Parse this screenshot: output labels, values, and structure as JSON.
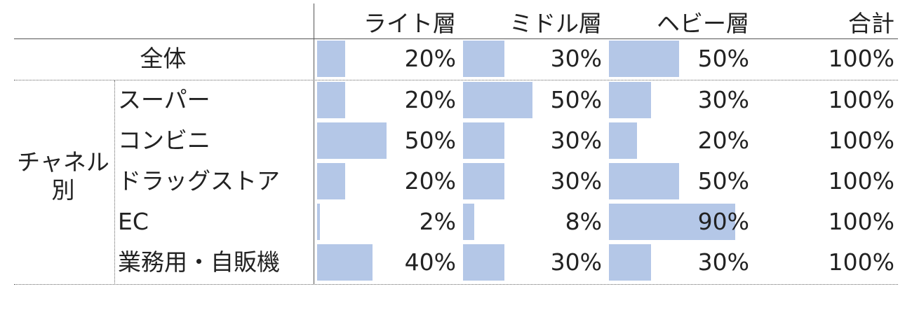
{
  "chart_data": {
    "type": "table",
    "columns": [
      "ライト層",
      "ミドル層",
      "ヘビー層",
      "合計"
    ],
    "group_label": "チャネル別",
    "rows": [
      {
        "label": "全体",
        "values": [
          20,
          30,
          50
        ],
        "labels": [
          "20%",
          "30%",
          "50%"
        ],
        "total": "100%"
      },
      {
        "label": "スーパー",
        "values": [
          20,
          50,
          30
        ],
        "labels": [
          "20%",
          "50%",
          "30%"
        ],
        "total": "100%"
      },
      {
        "label": "コンビニ",
        "values": [
          50,
          30,
          20
        ],
        "labels": [
          "50%",
          "30%",
          "20%"
        ],
        "total": "100%"
      },
      {
        "label": "ドラッグストア",
        "values": [
          20,
          30,
          50
        ],
        "labels": [
          "20%",
          "30%",
          "50%"
        ],
        "total": "100%"
      },
      {
        "label": "EC",
        "values": [
          2,
          8,
          90
        ],
        "labels": [
          "2%",
          "8%",
          "90%"
        ],
        "total": "100%"
      },
      {
        "label": "業務用・自販機",
        "values": [
          40,
          30,
          30
        ],
        "labels": [
          "40%",
          "30%",
          "30%"
        ],
        "total": "100%"
      }
    ],
    "bar_color": "#b4c7e7",
    "value_range": [
      0,
      100
    ]
  }
}
